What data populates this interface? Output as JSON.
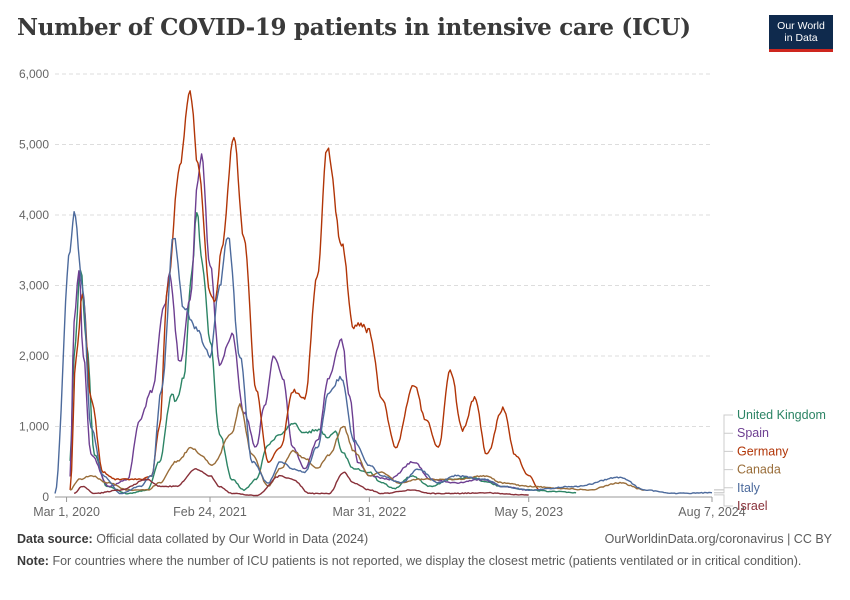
{
  "header": {
    "title": "Number of COVID-19 patients in intensive care (ICU)",
    "logo_line1": "Our World",
    "logo_line2": "in Data"
  },
  "footer": {
    "source_label": "Data source:",
    "source_text": "Official data collated by Our World in Data (2024)",
    "credit": "OurWorldinData.org/coronavirus | CC BY",
    "note_label": "Note:",
    "note_text": "For countries where the number of ICU patients is not reported, we display the closest metric (patients ventilated or in critical condition)."
  },
  "chart_data": {
    "type": "line",
    "title": "Number of COVID-19 patients in intensive care (ICU)",
    "x_ticks": [
      "Mar 1, 2020",
      "Feb 24, 2021",
      "Mar 31, 2022",
      "May 5, 2023",
      "Aug 7, 2024"
    ],
    "xlim": [
      "2020-02-01",
      "2024-08-07"
    ],
    "ylim": [
      0,
      6000
    ],
    "y_ticks": [
      0,
      1000,
      2000,
      3000,
      4000,
      5000,
      6000
    ],
    "y_tick_labels": [
      "0",
      "1,000",
      "2,000",
      "3,000",
      "4,000",
      "5,000",
      "6,000"
    ],
    "grid": true,
    "legend_position": "right",
    "series": [
      {
        "name": "United Kingdom",
        "color": "#2c8465",
        "points": [
          [
            "2020-03-10",
            500
          ],
          [
            "2020-03-20",
            2000
          ],
          [
            "2020-04-05",
            3250
          ],
          [
            "2020-04-20",
            2200
          ],
          [
            "2020-05-10",
            600
          ],
          [
            "2020-06-10",
            150
          ],
          [
            "2020-08-01",
            50
          ],
          [
            "2020-09-20",
            100
          ],
          [
            "2020-10-20",
            500
          ],
          [
            "2020-11-20",
            1450
          ],
          [
            "2020-12-01",
            1350
          ],
          [
            "2020-12-20",
            1700
          ],
          [
            "2021-01-10",
            3200
          ],
          [
            "2021-01-22",
            4050
          ],
          [
            "2021-02-05",
            3300
          ],
          [
            "2021-02-24",
            2200
          ],
          [
            "2021-03-20",
            900
          ],
          [
            "2021-04-20",
            250
          ],
          [
            "2021-05-20",
            100
          ],
          [
            "2021-06-20",
            250
          ],
          [
            "2021-07-20",
            750
          ],
          [
            "2021-08-20",
            900
          ],
          [
            "2021-09-20",
            1050
          ],
          [
            "2021-10-20",
            900
          ],
          [
            "2021-11-20",
            950
          ],
          [
            "2021-12-20",
            850
          ],
          [
            "2022-01-05",
            950
          ],
          [
            "2022-01-20",
            650
          ],
          [
            "2022-02-20",
            400
          ],
          [
            "2022-03-31",
            350
          ],
          [
            "2022-05-01",
            200
          ],
          [
            "2022-06-01",
            120
          ],
          [
            "2022-07-15",
            300
          ],
          [
            "2022-09-01",
            150
          ],
          [
            "2022-10-20",
            250
          ],
          [
            "2022-12-20",
            280
          ],
          [
            "2023-01-10",
            220
          ],
          [
            "2023-03-01",
            150
          ],
          [
            "2023-05-05",
            100
          ],
          [
            "2023-07-01",
            80
          ],
          [
            "2023-09-01",
            60
          ]
        ]
      },
      {
        "name": "Spain",
        "color": "#6d3e91",
        "points": [
          [
            "2020-03-10",
            300
          ],
          [
            "2020-03-20",
            2500
          ],
          [
            "2020-04-01",
            3250
          ],
          [
            "2020-04-12",
            2000
          ],
          [
            "2020-05-01",
            600
          ],
          [
            "2020-06-15",
            150
          ],
          [
            "2020-08-01",
            250
          ],
          [
            "2020-09-01",
            1100
          ],
          [
            "2020-10-01",
            1500
          ],
          [
            "2020-11-01",
            2700
          ],
          [
            "2020-11-15",
            3150
          ],
          [
            "2020-12-10",
            1900
          ],
          [
            "2021-01-05",
            2800
          ],
          [
            "2021-01-25",
            4500
          ],
          [
            "2021-02-03",
            4850
          ],
          [
            "2021-02-24",
            3300
          ],
          [
            "2021-03-20",
            1900
          ],
          [
            "2021-04-20",
            2300
          ],
          [
            "2021-05-20",
            1200
          ],
          [
            "2021-06-20",
            700
          ],
          [
            "2021-07-10",
            1300
          ],
          [
            "2021-08-05",
            2000
          ],
          [
            "2021-08-25",
            1700
          ],
          [
            "2021-09-20",
            700
          ],
          [
            "2021-10-20",
            400
          ],
          [
            "2021-11-20",
            800
          ],
          [
            "2021-12-20",
            1700
          ],
          [
            "2022-01-20",
            2250
          ],
          [
            "2022-02-10",
            1400
          ],
          [
            "2022-03-01",
            500
          ],
          [
            "2022-04-01",
            300
          ],
          [
            "2022-05-20",
            250
          ],
          [
            "2022-07-20",
            500
          ],
          [
            "2022-09-01",
            250
          ],
          [
            "2022-11-01",
            200
          ],
          [
            "2023-01-10",
            250
          ],
          [
            "2023-03-01",
            150
          ],
          [
            "2023-05-05",
            100
          ]
        ]
      },
      {
        "name": "Germany",
        "color": "#b13507",
        "points": [
          [
            "2020-03-10",
            100
          ],
          [
            "2020-03-25",
            2000
          ],
          [
            "2020-04-10",
            2900
          ],
          [
            "2020-05-01",
            1400
          ],
          [
            "2020-06-01",
            350
          ],
          [
            "2020-07-01",
            250
          ],
          [
            "2020-09-01",
            250
          ],
          [
            "2020-10-01",
            300
          ],
          [
            "2020-10-20",
            1000
          ],
          [
            "2020-11-10",
            3000
          ],
          [
            "2020-12-10",
            4700
          ],
          [
            "2021-01-05",
            5750
          ],
          [
            "2021-01-25",
            4700
          ],
          [
            "2021-02-24",
            2900
          ],
          [
            "2021-03-10",
            2800
          ],
          [
            "2021-03-25",
            3500
          ],
          [
            "2021-04-25",
            5100
          ],
          [
            "2021-05-20",
            3700
          ],
          [
            "2021-06-20",
            1500
          ],
          [
            "2021-07-20",
            500
          ],
          [
            "2021-08-20",
            700
          ],
          [
            "2021-09-20",
            1500
          ],
          [
            "2021-10-20",
            1400
          ],
          [
            "2021-11-20",
            3100
          ],
          [
            "2021-12-15",
            4950
          ],
          [
            "2022-01-20",
            3600
          ],
          [
            "2022-02-20",
            2400
          ],
          [
            "2022-03-10",
            2450
          ],
          [
            "2022-03-31",
            2350
          ],
          [
            "2022-05-01",
            1400
          ],
          [
            "2022-06-05",
            700
          ],
          [
            "2022-07-20",
            1600
          ],
          [
            "2022-08-20",
            1100
          ],
          [
            "2022-09-20",
            700
          ],
          [
            "2022-10-20",
            1800
          ],
          [
            "2022-11-20",
            950
          ],
          [
            "2022-12-20",
            1400
          ],
          [
            "2023-01-20",
            600
          ],
          [
            "2023-03-01",
            1250
          ],
          [
            "2023-04-01",
            600
          ],
          [
            "2023-05-05",
            300
          ],
          [
            "2023-06-01",
            100
          ]
        ]
      },
      {
        "name": "Canada",
        "color": "#996d39",
        "points": [
          [
            "2020-03-10",
            100
          ],
          [
            "2020-04-01",
            250
          ],
          [
            "2020-05-01",
            300
          ],
          [
            "2020-06-15",
            200
          ],
          [
            "2020-08-01",
            100
          ],
          [
            "2020-09-20",
            100
          ],
          [
            "2020-10-20",
            200
          ],
          [
            "2020-12-01",
            500
          ],
          [
            "2021-01-10",
            700
          ],
          [
            "2021-02-01",
            600
          ],
          [
            "2021-03-01",
            450
          ],
          [
            "2021-04-20",
            900
          ],
          [
            "2021-05-10",
            1300
          ],
          [
            "2021-06-10",
            600
          ],
          [
            "2021-07-20",
            150
          ],
          [
            "2021-08-20",
            400
          ],
          [
            "2021-09-20",
            650
          ],
          [
            "2021-10-20",
            550
          ],
          [
            "2021-11-20",
            400
          ],
          [
            "2021-12-20",
            600
          ],
          [
            "2022-01-25",
            1000
          ],
          [
            "2022-02-20",
            650
          ],
          [
            "2022-03-31",
            300
          ],
          [
            "2022-05-01",
            350
          ],
          [
            "2022-06-15",
            200
          ],
          [
            "2022-08-01",
            250
          ],
          [
            "2022-09-01",
            250
          ],
          [
            "2022-11-01",
            250
          ],
          [
            "2023-01-15",
            300
          ],
          [
            "2023-03-01",
            200
          ],
          [
            "2023-05-05",
            150
          ],
          [
            "2023-08-01",
            120
          ],
          [
            "2023-10-01",
            100
          ],
          [
            "2023-12-20",
            200
          ],
          [
            "2024-02-20",
            100
          ]
        ]
      },
      {
        "name": "Italy",
        "color": "#4c6a9c",
        "points": [
          [
            "2020-02-01",
            50
          ],
          [
            "2020-03-10",
            3500
          ],
          [
            "2020-03-20",
            4050
          ],
          [
            "2020-04-10",
            3000
          ],
          [
            "2020-05-01",
            1000
          ],
          [
            "2020-06-01",
            300
          ],
          [
            "2020-07-15",
            50
          ],
          [
            "2020-09-01",
            150
          ],
          [
            "2020-10-01",
            300
          ],
          [
            "2020-10-25",
            1500
          ],
          [
            "2020-11-25",
            3700
          ],
          [
            "2020-12-20",
            2700
          ],
          [
            "2021-01-20",
            2400
          ],
          [
            "2021-02-24",
            2000
          ],
          [
            "2021-03-20",
            3000
          ],
          [
            "2021-04-10",
            3700
          ],
          [
            "2021-05-10",
            2000
          ],
          [
            "2021-06-10",
            500
          ],
          [
            "2021-07-20",
            200
          ],
          [
            "2021-08-20",
            500
          ],
          [
            "2021-09-20",
            400
          ],
          [
            "2021-10-20",
            350
          ],
          [
            "2021-11-20",
            700
          ],
          [
            "2021-12-20",
            1500
          ],
          [
            "2022-01-20",
            1700
          ],
          [
            "2022-02-20",
            800
          ],
          [
            "2022-03-31",
            450
          ],
          [
            "2022-05-01",
            300
          ],
          [
            "2022-06-20",
            200
          ],
          [
            "2022-08-01",
            400
          ],
          [
            "2022-09-20",
            200
          ],
          [
            "2022-11-01",
            300
          ],
          [
            "2023-01-15",
            250
          ],
          [
            "2023-03-01",
            150
          ],
          [
            "2023-05-05",
            100
          ],
          [
            "2023-09-01",
            150
          ],
          [
            "2023-12-20",
            280
          ],
          [
            "2024-02-20",
            100
          ],
          [
            "2024-05-01",
            50
          ],
          [
            "2024-08-07",
            60
          ]
        ]
      },
      {
        "name": "Israel",
        "color": "#883039",
        "points": [
          [
            "2020-03-20",
            50
          ],
          [
            "2020-04-10",
            150
          ],
          [
            "2020-05-10",
            50
          ],
          [
            "2020-07-15",
            100
          ],
          [
            "2020-09-20",
            250
          ],
          [
            "2020-10-20",
            150
          ],
          [
            "2020-12-01",
            150
          ],
          [
            "2021-01-20",
            400
          ],
          [
            "2021-02-24",
            300
          ],
          [
            "2021-03-20",
            150
          ],
          [
            "2021-04-20",
            50
          ],
          [
            "2021-06-20",
            20
          ],
          [
            "2021-08-20",
            300
          ],
          [
            "2021-09-20",
            250
          ],
          [
            "2021-11-01",
            50
          ],
          [
            "2021-12-20",
            50
          ],
          [
            "2022-01-25",
            350
          ],
          [
            "2022-02-20",
            200
          ],
          [
            "2022-03-31",
            100
          ],
          [
            "2022-05-01",
            50
          ],
          [
            "2022-07-20",
            100
          ],
          [
            "2022-09-01",
            50
          ],
          [
            "2022-11-01",
            50
          ],
          [
            "2023-01-10",
            60
          ],
          [
            "2023-05-05",
            30
          ]
        ]
      }
    ]
  }
}
